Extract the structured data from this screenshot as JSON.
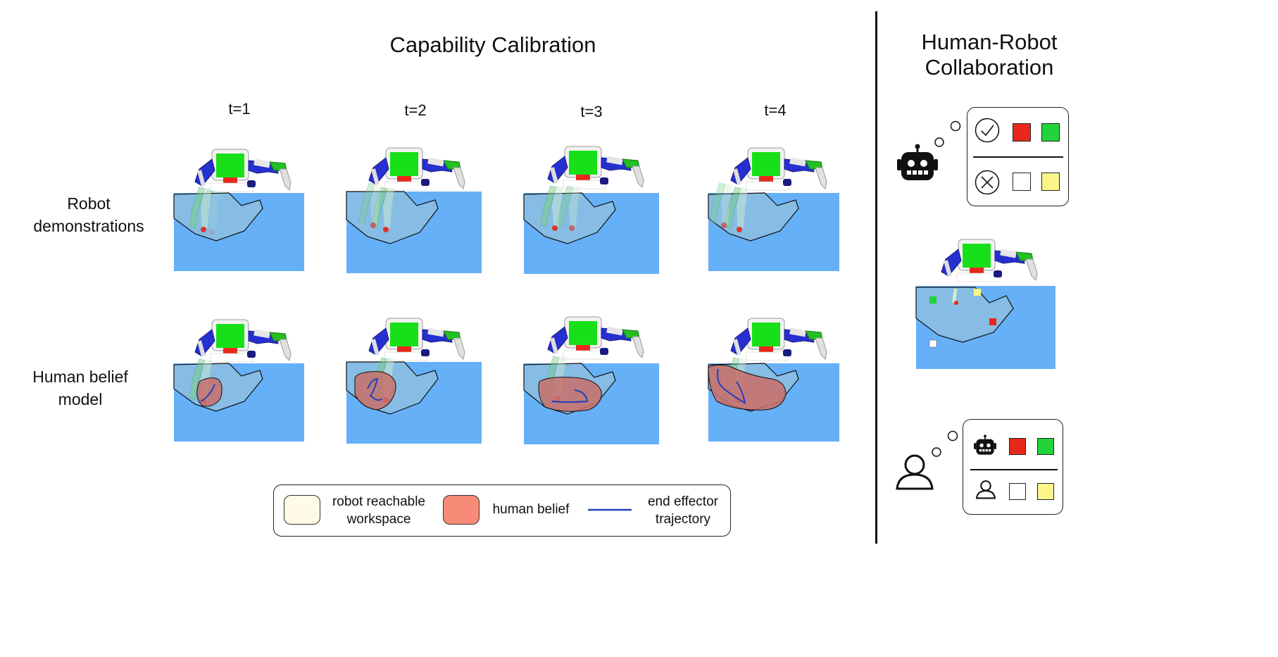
{
  "main_title": "Capability Calibration",
  "side_title_line1": "Human-Robot",
  "side_title_line2": "Collaboration",
  "timesteps": [
    "t=1",
    "t=2",
    "t=3",
    "t=4"
  ],
  "rows": {
    "robot_line1": "Robot",
    "robot_line2": "demonstrations",
    "human_line1": "Human belief",
    "human_line2": "model"
  },
  "legend": {
    "workspace_line1": "robot reachable",
    "workspace_line2": "workspace",
    "belief": "human belief",
    "trajectory_line1": "end effector",
    "trajectory_line2": "trajectory"
  },
  "colors": {
    "table_blue": "#66b0f8",
    "workspace_fill": "#8dbfe0",
    "belief_fill": "#c9706a",
    "trajectory": "#1f3fbf",
    "workspace_swatch": "#fffbe6",
    "belief_swatch": "#f88a78",
    "cube_red": "#e8281c",
    "cube_green": "#22d43a",
    "cube_yellow": "#fbf58a",
    "robot_head_green": "#18e018"
  },
  "icons": {
    "robot": "robot-face-icon",
    "human": "person-outline-icon",
    "check": "check-circle-icon",
    "cross": "x-circle-icon"
  }
}
